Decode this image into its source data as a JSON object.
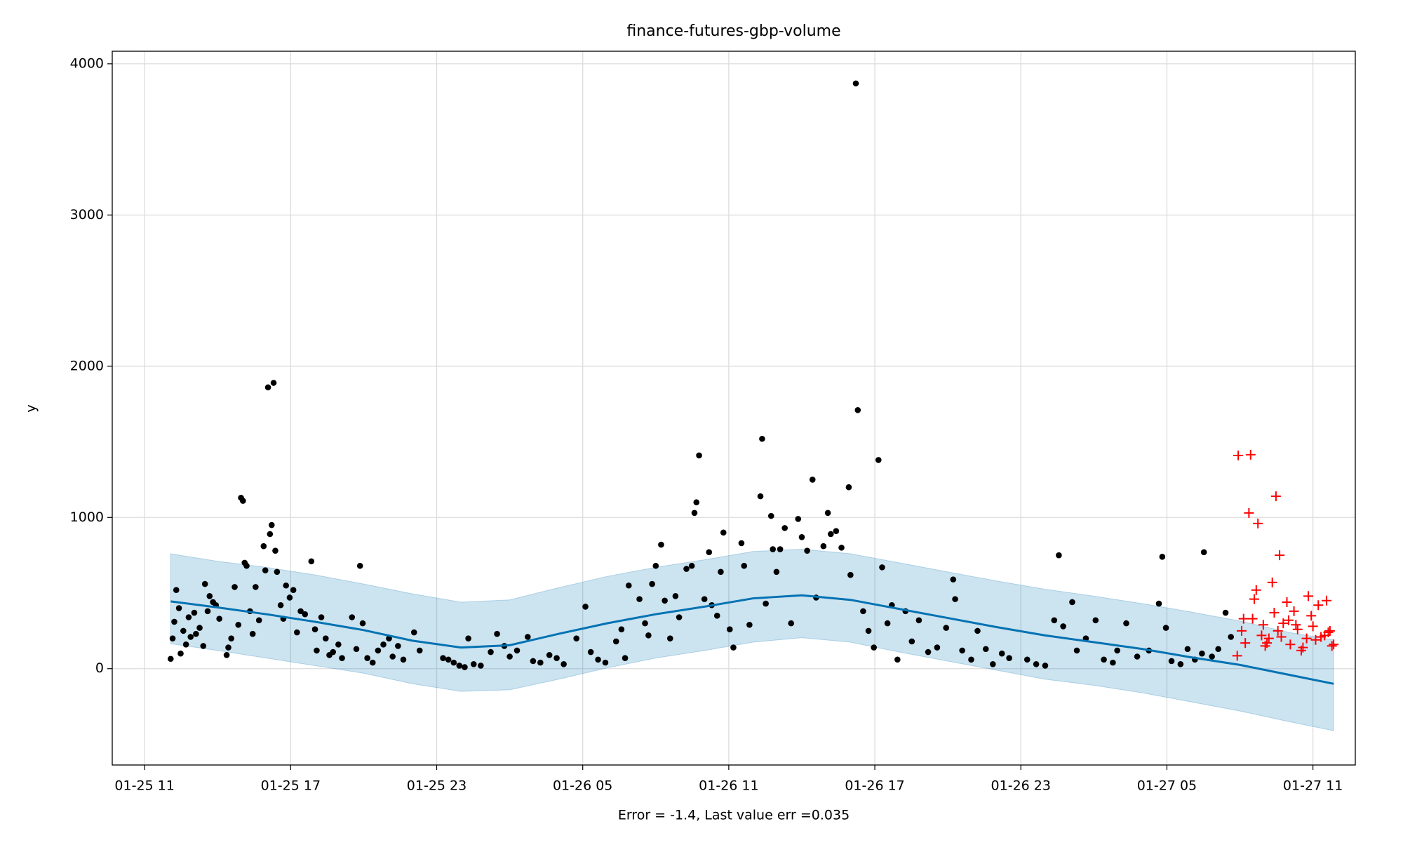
{
  "chart_data": {
    "type": "scatter",
    "title": "finance-futures-gbp-volume",
    "xlabel": "Error = -1.4, Last value err =0.035",
    "ylabel": "y",
    "xlim": [
      9.67,
      60.74
    ],
    "ylim": [
      -637,
      4083
    ],
    "xticks": [
      {
        "value": 11,
        "label": "01-25 11"
      },
      {
        "value": 17,
        "label": "01-25 17"
      },
      {
        "value": 23,
        "label": "01-25 23"
      },
      {
        "value": 29,
        "label": "01-26 05"
      },
      {
        "value": 35,
        "label": "01-26 11"
      },
      {
        "value": 41,
        "label": "01-26 17"
      },
      {
        "value": 47,
        "label": "01-26 23"
      },
      {
        "value": 53,
        "label": "01-27 05"
      },
      {
        "value": 59,
        "label": "01-27 11"
      }
    ],
    "yticks": [
      0,
      1000,
      2000,
      3000,
      4000
    ],
    "grid": true,
    "series": [
      {
        "color": "#000000",
        "marker": "dot",
        "x": [
          12.07,
          12.15,
          12.22,
          12.3,
          12.41,
          12.48,
          12.59,
          12.7,
          12.81,
          12.89,
          13.04,
          13.11,
          13.26,
          13.41,
          13.48,
          13.59,
          13.67,
          13.81,
          13.93,
          14.07,
          14.37,
          14.44,
          14.56,
          14.7,
          14.85,
          14.96,
          15.04,
          15.11,
          15.19,
          15.33,
          15.44,
          15.56,
          15.7,
          15.89,
          15.96,
          16.07,
          16.15,
          16.22,
          16.3,
          16.37,
          16.44,
          16.59,
          16.7,
          16.81,
          16.96,
          17.11,
          17.26,
          17.41,
          17.59,
          17.85,
          18.0,
          18.07,
          18.26,
          18.44,
          18.59,
          18.74,
          18.96,
          19.11,
          19.52,
          19.7,
          19.85,
          19.96,
          20.15,
          20.37,
          20.59,
          20.81,
          21.04,
          21.19,
          21.41,
          21.63,
          22.07,
          22.3,
          23.26,
          23.48,
          23.7,
          23.93,
          24.15,
          24.3,
          24.52,
          24.81,
          25.22,
          25.48,
          25.78,
          26.0,
          26.3,
          26.74,
          26.96,
          27.26,
          27.63,
          27.93,
          28.22,
          28.74,
          29.11,
          29.33,
          29.63,
          29.93,
          30.37,
          30.59,
          30.74,
          30.89,
          31.33,
          31.56,
          31.7,
          31.85,
          32.0,
          32.22,
          32.37,
          32.59,
          32.81,
          32.96,
          33.26,
          33.48,
          33.59,
          33.67,
          33.78,
          34.0,
          34.19,
          34.3,
          34.52,
          34.67,
          34.78,
          35.04,
          35.19,
          35.52,
          35.63,
          35.85,
          36.3,
          36.37,
          36.52,
          36.74,
          36.81,
          36.96,
          37.11,
          37.3,
          37.56,
          37.85,
          38.0,
          38.22,
          38.44,
          38.59,
          38.89,
          39.07,
          39.19,
          39.41,
          39.63,
          39.93,
          40.0,
          40.22,
          40.3,
          40.52,
          40.74,
          40.96,
          41.15,
          41.3,
          41.52,
          41.7,
          41.93,
          42.26,
          42.52,
          42.81,
          43.19,
          43.56,
          43.93,
          44.22,
          44.3,
          44.59,
          44.96,
          45.22,
          45.56,
          45.85,
          46.22,
          46.52,
          47.26,
          47.63,
          48.0,
          48.37,
          48.56,
          48.74,
          49.11,
          49.3,
          49.67,
          50.07,
          50.41,
          50.78,
          50.96,
          51.33,
          51.78,
          52.26,
          52.67,
          52.81,
          52.96,
          53.19,
          53.56,
          53.85,
          54.15,
          54.44,
          54.52,
          54.85,
          55.11,
          55.41,
          55.63
        ],
        "values": [
          65,
          200,
          310,
          520,
          400,
          100,
          250,
          160,
          340,
          210,
          370,
          230,
          270,
          150,
          560,
          380,
          480,
          440,
          420,
          330,
          90,
          140,
          200,
          540,
          290,
          1130,
          1110,
          700,
          680,
          380,
          230,
          540,
          320,
          810,
          650,
          1860,
          890,
          950,
          1890,
          780,
          640,
          420,
          330,
          550,
          470,
          520,
          240,
          380,
          360,
          710,
          260,
          120,
          340,
          200,
          90,
          110,
          160,
          70,
          340,
          130,
          680,
          300,
          70,
          40,
          120,
          160,
          200,
          80,
          150,
          60,
          240,
          120,
          70,
          60,
          40,
          20,
          10,
          200,
          30,
          20,
          110,
          230,
          150,
          80,
          120,
          210,
          50,
          40,
          90,
          70,
          30,
          200,
          410,
          110,
          60,
          40,
          180,
          260,
          70,
          550,
          460,
          300,
          220,
          560,
          680,
          820,
          450,
          200,
          480,
          340,
          660,
          680,
          1030,
          1100,
          1410,
          460,
          770,
          420,
          350,
          640,
          900,
          260,
          140,
          830,
          680,
          290,
          1140,
          1520,
          430,
          1010,
          790,
          640,
          790,
          930,
          300,
          990,
          870,
          780,
          1250,
          470,
          810,
          1030,
          890,
          910,
          800,
          1200,
          620,
          3870,
          1710,
          380,
          250,
          140,
          1380,
          670,
          300,
          420,
          60,
          380,
          180,
          320,
          110,
          140,
          270,
          590,
          460,
          120,
          60,
          250,
          130,
          30,
          100,
          70,
          60,
          30,
          20,
          320,
          750,
          280,
          440,
          120,
          200,
          320,
          60,
          40,
          120,
          300,
          80,
          120,
          430,
          740,
          270,
          50,
          30,
          130,
          60,
          100,
          770,
          80,
          130,
          370,
          210
        ]
      },
      {
        "color": "#ff0000",
        "marker": "plus",
        "x": [
          55.89,
          55.93,
          56.07,
          56.15,
          56.22,
          56.37,
          56.44,
          56.52,
          56.59,
          56.67,
          56.74,
          56.89,
          56.96,
          57.04,
          57.11,
          57.19,
          57.33,
          57.41,
          57.48,
          57.56,
          57.63,
          57.7,
          57.78,
          57.93,
          58.0,
          58.07,
          58.22,
          58.3,
          58.37,
          58.52,
          58.59,
          58.74,
          58.81,
          58.93,
          59.0,
          59.11,
          59.22,
          59.33,
          59.48,
          59.56,
          59.63,
          59.7,
          59.78,
          59.85
        ],
        "values": [
          85,
          1410,
          250,
          330,
          170,
          1030,
          1415,
          330,
          460,
          520,
          960,
          220,
          290,
          150,
          170,
          200,
          570,
          370,
          1140,
          250,
          750,
          210,
          300,
          440,
          320,
          160,
          380,
          290,
          260,
          120,
          140,
          200,
          480,
          350,
          280,
          190,
          420,
          210,
          220,
          450,
          240,
          250,
          150,
          160
        ]
      }
    ],
    "forecast": {
      "color": "#0072b2",
      "band_color": "#0072b2",
      "x": [
        12.07,
        14,
        16,
        18,
        20,
        22,
        24,
        26,
        28,
        30,
        32,
        34,
        36,
        38,
        40,
        42,
        44,
        46,
        48,
        50,
        52,
        54,
        56,
        58,
        59.85
      ],
      "values": [
        445,
        405,
        360,
        310,
        255,
        185,
        140,
        155,
        230,
        300,
        360,
        410,
        465,
        485,
        455,
        395,
        335,
        275,
        220,
        175,
        130,
        75,
        25,
        -40,
        -100
      ],
      "lower": [
        165,
        120,
        70,
        20,
        -30,
        -100,
        -150,
        -140,
        -70,
        5,
        70,
        120,
        175,
        205,
        175,
        110,
        50,
        -10,
        -70,
        -110,
        -160,
        -220,
        -280,
        -350,
        -410
      ],
      "upper": [
        760,
        710,
        670,
        620,
        560,
        495,
        440,
        455,
        535,
        610,
        670,
        720,
        775,
        790,
        760,
        700,
        640,
        580,
        525,
        480,
        430,
        375,
        315,
        240,
        190
      ]
    }
  }
}
